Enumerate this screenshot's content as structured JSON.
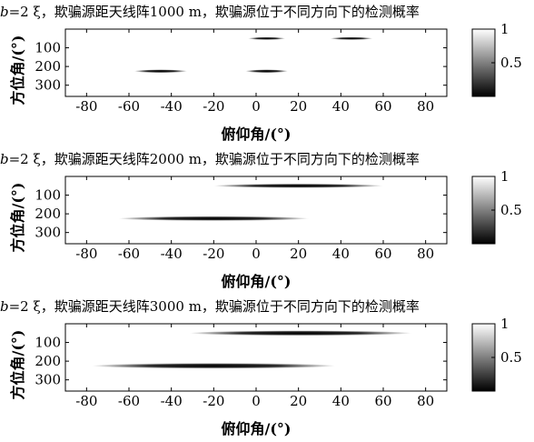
{
  "chart_data": [
    {
      "type": "heatmap",
      "title_prefix": "b",
      "title_rest": "=2 ξ，欺骗源距天线阵1000 m，欺骗源位于不同方向下的检测概率",
      "xlabel": "俯仰角/(°)",
      "ylabel": "方位角/(°)",
      "xlim": [
        -90,
        90
      ],
      "ylim": [
        0,
        360
      ],
      "xticks": [
        -80,
        -60,
        -40,
        -20,
        0,
        20,
        40,
        60,
        80
      ],
      "yticks": [
        100,
        200,
        300
      ],
      "colorbar": {
        "min": 0,
        "max": 1,
        "ticks": [
          "1",
          "0.5"
        ],
        "colormap": "gray"
      },
      "regions": [
        {
          "x_center": 5,
          "x_halfwidth": 7,
          "y_center": 50,
          "y_halfwidth": 6,
          "probability": 1.0
        },
        {
          "x_center": 45,
          "x_halfwidth": 8,
          "y_center": 50,
          "y_halfwidth": 6,
          "probability": 1.0
        },
        {
          "x_center": -45,
          "x_halfwidth": 10,
          "y_center": 225,
          "y_halfwidth": 7,
          "probability": 1.0
        },
        {
          "x_center": 5,
          "x_halfwidth": 8,
          "y_center": 225,
          "y_halfwidth": 7,
          "probability": 1.0
        }
      ]
    },
    {
      "type": "heatmap",
      "title_prefix": "b",
      "title_rest": "=2 ξ，欺骗源距天线阵2000 m，欺骗源位于不同方向下的检测概率",
      "xlabel": "俯仰角/(°)",
      "ylabel": "方位角/(°)",
      "xlim": [
        -90,
        90
      ],
      "ylim": [
        0,
        360
      ],
      "xticks": [
        -80,
        -60,
        -40,
        -20,
        0,
        20,
        40,
        60,
        80
      ],
      "yticks": [
        100,
        200,
        300
      ],
      "colorbar": {
        "min": 0,
        "max": 1,
        "ticks": [
          "1",
          "0.5"
        ],
        "colormap": "gray"
      },
      "regions": [
        {
          "x_center": 20,
          "x_halfwidth": 32,
          "y_center": 50,
          "y_halfwidth": 9,
          "probability": 1.0
        },
        {
          "x_center": -20,
          "x_halfwidth": 36,
          "y_center": 225,
          "y_halfwidth": 10,
          "probability": 1.0
        }
      ]
    },
    {
      "type": "heatmap",
      "title_prefix": "b",
      "title_rest": "=2 ξ，欺骗源距天线阵3000 m，欺骗源位于不同方向下的检测概率",
      "xlabel": "俯仰角/(°)",
      "ylabel": "方位角/(°)",
      "xlim": [
        -90,
        90
      ],
      "ylim": [
        0,
        360
      ],
      "xticks": [
        -80,
        -60,
        -40,
        -20,
        0,
        20,
        40,
        60,
        80
      ],
      "yticks": [
        100,
        200,
        300
      ],
      "colorbar": {
        "min": 0,
        "max": 1,
        "ticks": [
          "1",
          "0.5"
        ],
        "colormap": "gray"
      },
      "regions": [
        {
          "x_center": 21,
          "x_halfwidth": 42,
          "y_center": 50,
          "y_halfwidth": 11,
          "probability": 1.0
        },
        {
          "x_center": -20,
          "x_halfwidth": 46,
          "y_center": 225,
          "y_halfwidth": 12,
          "probability": 1.0
        }
      ]
    }
  ]
}
